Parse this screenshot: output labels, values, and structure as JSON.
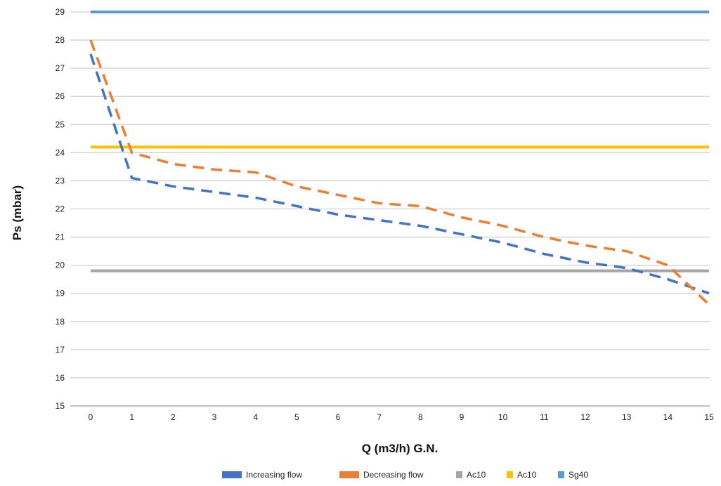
{
  "chart_data": {
    "type": "line",
    "title": "",
    "xlabel": "Q (m3/h) G.N.",
    "ylabel": "Ps (mbar)",
    "x": [
      0,
      1,
      2,
      3,
      4,
      5,
      6,
      7,
      8,
      9,
      10,
      11,
      12,
      13,
      14,
      15
    ],
    "xlim": [
      0,
      15
    ],
    "ylim": [
      15,
      29
    ],
    "yticks": [
      15,
      16,
      17,
      18,
      19,
      20,
      21,
      22,
      23,
      24,
      25,
      26,
      27,
      28,
      29
    ],
    "grid": true,
    "legend_position": "bottom",
    "series": [
      {
        "name": "Increasing flow",
        "style": "dashed",
        "color": "#4472C4",
        "values": [
          27.5,
          23.1,
          22.8,
          22.6,
          22.4,
          22.1,
          21.8,
          21.6,
          21.4,
          21.1,
          20.8,
          20.4,
          20.1,
          19.9,
          19.5,
          19.0
        ]
      },
      {
        "name": "Decreasing  flow",
        "style": "dashed",
        "color": "#ED7D31",
        "values": [
          28.0,
          24.0,
          23.6,
          23.4,
          23.3,
          22.8,
          22.5,
          22.2,
          22.1,
          21.7,
          21.4,
          21.0,
          20.7,
          20.5,
          20.0,
          18.6
        ]
      },
      {
        "name": "Ac10",
        "style": "solid",
        "color": "#A5A5A5",
        "values": [
          19.8,
          19.8,
          19.8,
          19.8,
          19.8,
          19.8,
          19.8,
          19.8,
          19.8,
          19.8,
          19.8,
          19.8,
          19.8,
          19.8,
          19.8,
          19.8
        ]
      },
      {
        "name": "Ac10",
        "style": "solid",
        "color": "#FFC000",
        "values": [
          24.2,
          24.2,
          24.2,
          24.2,
          24.2,
          24.2,
          24.2,
          24.2,
          24.2,
          24.2,
          24.2,
          24.2,
          24.2,
          24.2,
          24.2,
          24.2
        ]
      },
      {
        "name": "Sg40",
        "style": "solid",
        "color": "#5B9BD5",
        "values": [
          29.0,
          29.0,
          29.0,
          29.0,
          29.0,
          29.0,
          29.0,
          29.0,
          29.0,
          29.0,
          29.0,
          29.0,
          29.0,
          29.0,
          29.0,
          29.0
        ]
      }
    ]
  }
}
